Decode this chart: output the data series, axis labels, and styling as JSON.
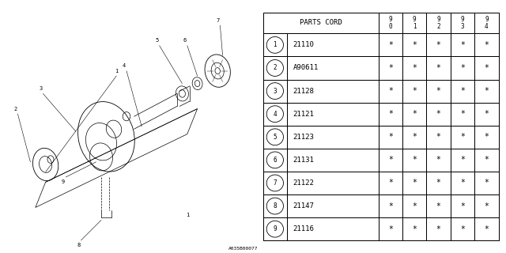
{
  "bg_color": "#ffffff",
  "diagram_label": "A035B00077",
  "table": {
    "header": "PARTS CORD",
    "year_cols": [
      "9\n0",
      "9\n1",
      "9\n2",
      "9\n3",
      "9\n4"
    ],
    "rows": [
      {
        "num": 1,
        "part": "21110"
      },
      {
        "num": 2,
        "part": "A90611"
      },
      {
        "num": 3,
        "part": "21128"
      },
      {
        "num": 4,
        "part": "21121"
      },
      {
        "num": 5,
        "part": "21123"
      },
      {
        "num": 6,
        "part": "21131"
      },
      {
        "num": 7,
        "part": "21122"
      },
      {
        "num": 8,
        "part": "21147"
      },
      {
        "num": 9,
        "part": "21116"
      }
    ]
  },
  "font_size": 6.5
}
